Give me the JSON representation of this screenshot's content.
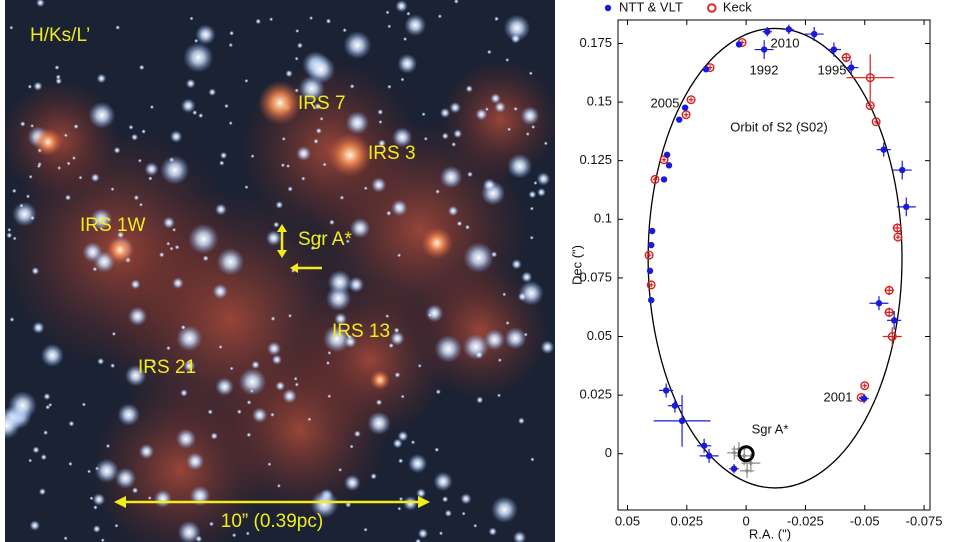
{
  "image": {
    "labels": [
      "H/Ks/L’",
      "IRS 7",
      "IRS 3",
      "IRS 1W",
      "Sgr A*",
      "IRS 13",
      "IRS 21",
      "10” (0.39pc)"
    ]
  },
  "chart_data": {
    "type": "scatter",
    "xlabel": "R.A. (\")",
    "ylabel": "Dec (\")",
    "xlim": [
      0.054,
      -0.0775
    ],
    "xticks": [
      0.05,
      0.025,
      0,
      -0.025,
      -0.05,
      -0.075
    ],
    "ylim": [
      -0.024,
      0.185
    ],
    "yticks": [
      0,
      0.025,
      0.05,
      0.075,
      0.1,
      0.125,
      0.15,
      0.175
    ],
    "legend": "top",
    "annotations": [
      "2010",
      "1992",
      "1995",
      "2005",
      "2001",
      "Orbit of S2 (S02)",
      "Sgr A*"
    ],
    "orbit": {
      "cx": -0.0122,
      "cy": 0.0834,
      "rx": 0.0535,
      "ry": 0.098
    },
    "sgr_a": [
      0,
      0
    ],
    "series": [
      {
        "name": "NTT & VLT",
        "color": "#1a1adc",
        "marker": "filled",
        "x": [
          0.04,
          0.0405,
          0.04,
          0.0396,
          0.0346,
          0.0333,
          0.0325,
          0.0282,
          0.0257,
          0.0169,
          0.003,
          -0.0076,
          -0.0089,
          -0.018,
          -0.0287,
          -0.037,
          -0.0443,
          -0.058,
          -0.0658,
          -0.0675,
          -0.056,
          -0.0624,
          -0.0497,
          0.0337,
          0.03,
          0.027,
          0.0177,
          0.0156,
          0.0051
        ],
        "y": [
          0.0655,
          0.078,
          0.089,
          0.095,
          0.117,
          0.1275,
          0.123,
          0.1425,
          0.1476,
          0.164,
          0.1746,
          0.1724,
          0.18,
          0.181,
          0.179,
          0.1724,
          0.1647,
          0.1297,
          0.121,
          0.1053,
          0.0642,
          0.0569,
          0.0235,
          0.027,
          0.0205,
          0.014,
          0.0034,
          -0.0009,
          -0.0064
        ],
        "xerr": [
          0.001,
          0.001,
          0.001,
          0.001,
          0.001,
          0.001,
          0.001,
          0.001,
          0.001,
          0.001,
          0.001,
          0.004,
          0.002,
          0.002,
          0.004,
          0.003,
          0.003,
          0.003,
          0.004,
          0.004,
          0.004,
          0.003,
          0.002,
          0.003,
          0.003,
          0.012,
          0.003,
          0.004,
          0.002
        ],
        "yerr": [
          0.001,
          0.001,
          0.001,
          0.001,
          0.001,
          0.001,
          0.001,
          0.001,
          0.001,
          0.001,
          0.001,
          0.004,
          0.002,
          0.002,
          0.003,
          0.003,
          0.003,
          0.003,
          0.004,
          0.004,
          0.003,
          0.004,
          0.002,
          0.003,
          0.003,
          0.011,
          0.003,
          0.003,
          0.002
        ]
      },
      {
        "name": "Keck",
        "color": "#d81e1e",
        "marker": "open",
        "x": [
          0.0384,
          0.0346,
          0.0253,
          0.0232,
          0.0152,
          0.0017,
          -0.0422,
          -0.0523,
          -0.0523,
          -0.0548,
          -0.0637,
          -0.064,
          -0.0603,
          -0.0603,
          -0.0616,
          -0.05,
          -0.0485,
          0.04,
          0.0409
        ],
        "y": [
          0.117,
          0.1254,
          0.1446,
          0.151,
          0.1647,
          0.1754,
          0.169,
          0.1604,
          0.1485,
          0.1416,
          0.0963,
          0.0924,
          0.0697,
          0.0603,
          0.05,
          0.029,
          0.024,
          0.072,
          0.0847
        ],
        "xerr": [
          0.001,
          0.001,
          0.001,
          0.001,
          0.001,
          0.001,
          0.002,
          0.01,
          0.001,
          0.001,
          0.002,
          0.001,
          0.002,
          0.002,
          0.004,
          0.001,
          0.001,
          0.001,
          0.001
        ],
        "yerr": [
          0.001,
          0.001,
          0.001,
          0.001,
          0.001,
          0.001,
          0.002,
          0.01,
          0.001,
          0.001,
          0.002,
          0.001,
          0.002,
          0.002,
          0.004,
          0.001,
          0.001,
          0.001,
          0.001
        ]
      },
      {
        "color": "#8a8a8a",
        "marker": "small",
        "x": [
          0.0008,
          0.003,
          -0.002,
          0.005,
          -0.0004
        ],
        "y": [
          -0.0009,
          0.002,
          -0.004,
          0.0004,
          -0.0073
        ],
        "xerr": [
          0.004,
          0.003,
          0.004,
          0.003,
          0.003
        ],
        "yerr": [
          0.004,
          0.003,
          0.004,
          0.003,
          0.003
        ]
      }
    ]
  }
}
